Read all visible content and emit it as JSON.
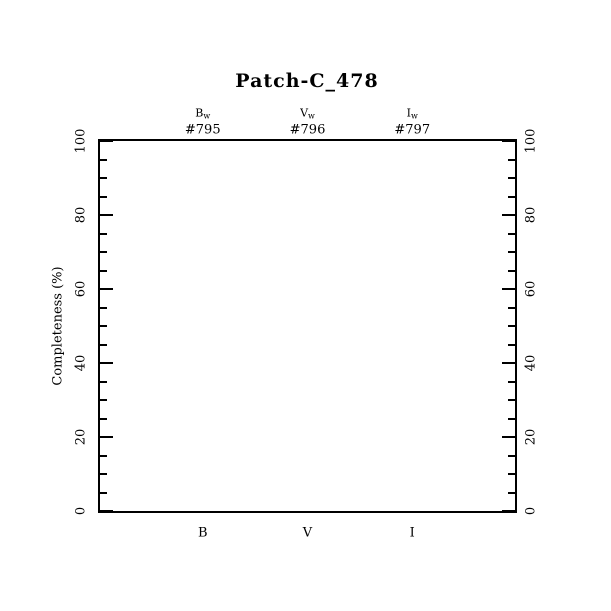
{
  "page": {
    "background": "#ffffff",
    "ink": "#000000"
  },
  "chart_data": {
    "type": "line",
    "title": "Patch-C_478",
    "xlabel": "",
    "ylabel": "Completeness (%)",
    "ylim": [
      0,
      100
    ],
    "y_major_ticks": [
      0,
      20,
      40,
      60,
      80,
      100
    ],
    "y_minor_step": 5,
    "grid": false,
    "frame": "box",
    "legend": "none",
    "tick_label_rotation_deg": -90,
    "categories": [
      "B",
      "V",
      "I"
    ],
    "category_positions": [
      0.25,
      0.5,
      0.75
    ],
    "top_annotations": [
      {
        "band": "B",
        "subscript": "w",
        "id": "#795"
      },
      {
        "band": "V",
        "subscript": "w",
        "id": "#796"
      },
      {
        "band": "I",
        "subscript": "w",
        "id": "#797"
      }
    ],
    "series": []
  }
}
